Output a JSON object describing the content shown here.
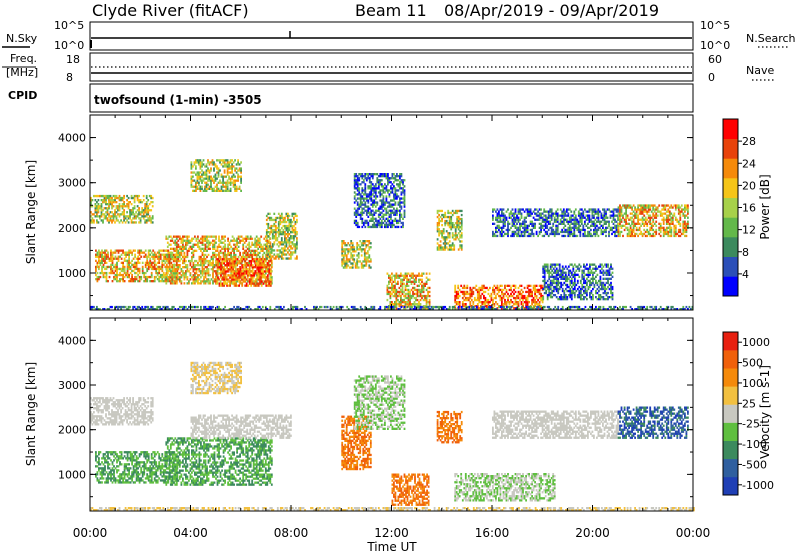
{
  "header": {
    "station": "Clyde River (fitACF)",
    "beam": "Beam 11",
    "date_range": "08/Apr/2019 - 09/Apr/2019"
  },
  "strip_panels": {
    "nsky": {
      "label": "N.Sky",
      "tick_top": "10^5",
      "tick_bottom": "10^0",
      "right_label": "N.Search",
      "right_tick_top": "10^5",
      "right_tick_bottom": "10^0"
    },
    "freq": {
      "label_line1": "Freq.",
      "label_line2": "[MHz]",
      "tick_top": "18",
      "tick_bottom": "8",
      "right_label": "Nave",
      "right_tick_top": "60",
      "right_tick_bottom": "0"
    },
    "cpid": {
      "label": "CPID",
      "program": "twofsound (1-min) -3505"
    }
  },
  "x_axis": {
    "label": "Time UT",
    "ticks": [
      "00:00",
      "04:00",
      "08:00",
      "12:00",
      "16:00",
      "20:00",
      "00:00"
    ]
  },
  "chart_data": [
    {
      "type": "heatmap",
      "name": "power-panel",
      "xlabel": "Time UT",
      "ylabel": "Slant Range [km]",
      "xlim": [
        0,
        24
      ],
      "ylim": [
        180,
        4500
      ],
      "y_ticks": [
        "1000",
        "2000",
        "3000",
        "4000"
      ],
      "colorbar": {
        "label": "Power [dB]",
        "ticks": [
          "4",
          "8",
          "12",
          "16",
          "20",
          "24",
          "28"
        ],
        "range": [
          0,
          30
        ],
        "colors": [
          "#0000ff",
          "#2b4fb8",
          "#3c8a5e",
          "#63b84a",
          "#a7d14a",
          "#f5c518",
          "#f58a0a",
          "#e8420a",
          "#ff0000"
        ]
      },
      "regions": [
        {
          "t0": 0.2,
          "t1": 3.5,
          "r0": 800,
          "r1": 1500,
          "level": "high"
        },
        {
          "t0": 3.0,
          "t1": 7.2,
          "r0": 750,
          "r1": 1800,
          "level": "high"
        },
        {
          "t0": 5.0,
          "t1": 7.2,
          "r0": 700,
          "r1": 1300,
          "level": "peak"
        },
        {
          "t0": 0.0,
          "t1": 2.5,
          "r0": 2100,
          "r1": 2700,
          "level": "mid"
        },
        {
          "t0": 4.0,
          "t1": 6.0,
          "r0": 2800,
          "r1": 3500,
          "level": "mid"
        },
        {
          "t0": 7.0,
          "t1": 8.2,
          "r0": 1300,
          "r1": 2300,
          "level": "mid"
        },
        {
          "t0": 10.0,
          "t1": 11.2,
          "r0": 1100,
          "r1": 1700,
          "level": "mid"
        },
        {
          "t0": 10.5,
          "t1": 12.5,
          "r0": 2000,
          "r1": 3200,
          "level": "low"
        },
        {
          "t0": 11.8,
          "t1": 13.5,
          "r0": 200,
          "r1": 1000,
          "level": "high"
        },
        {
          "t0": 13.8,
          "t1": 14.8,
          "r0": 1500,
          "r1": 2400,
          "level": "mid"
        },
        {
          "t0": 14.5,
          "t1": 18.0,
          "r0": 200,
          "r1": 700,
          "level": "peak"
        },
        {
          "t0": 18.0,
          "t1": 20.8,
          "r0": 400,
          "r1": 1200,
          "level": "low"
        },
        {
          "t0": 16.0,
          "t1": 21.0,
          "r0": 1800,
          "r1": 2400,
          "level": "low"
        },
        {
          "t0": 21.0,
          "t1": 23.8,
          "r0": 1800,
          "r1": 2500,
          "level": "high"
        },
        {
          "t0": 0.0,
          "t1": 24.0,
          "r0": 180,
          "r1": 260,
          "level": "low"
        }
      ]
    },
    {
      "type": "heatmap",
      "name": "velocity-panel",
      "xlabel": "Time UT",
      "ylabel": "Slant Range [km]",
      "xlim": [
        0,
        24
      ],
      "ylim": [
        180,
        4500
      ],
      "y_ticks": [
        "1000",
        "2000",
        "3000",
        "4000"
      ],
      "colorbar": {
        "label": "Velocity [m s-1]",
        "ticks": [
          "1000",
          "500",
          "100",
          "25",
          "-25",
          "-100",
          "-500",
          "-1000"
        ],
        "range": [
          -1000,
          1000
        ],
        "colors": [
          "#1f3fb5",
          "#2f5f9f",
          "#3c8a5e",
          "#5fbf3f",
          "#c8c8c0",
          "#f2c040",
          "#f58a0a",
          "#f0600a",
          "#e82010"
        ]
      },
      "regions": [
        {
          "t0": 0.2,
          "t1": 3.5,
          "r0": 800,
          "r1": 1500,
          "level": "pos-mid"
        },
        {
          "t0": 3.0,
          "t1": 7.2,
          "r0": 750,
          "r1": 1800,
          "level": "pos-mid"
        },
        {
          "t0": 0.0,
          "t1": 2.5,
          "r0": 2100,
          "r1": 2700,
          "level": "zero"
        },
        {
          "t0": 4.0,
          "t1": 6.0,
          "r0": 2800,
          "r1": 3500,
          "level": "neg-low"
        },
        {
          "t0": 4.0,
          "t1": 8.0,
          "r0": 1800,
          "r1": 2300,
          "level": "zero"
        },
        {
          "t0": 10.0,
          "t1": 11.2,
          "r0": 1100,
          "r1": 2300,
          "level": "neg-mid"
        },
        {
          "t0": 10.5,
          "t1": 12.5,
          "r0": 2000,
          "r1": 3200,
          "level": "pos-low"
        },
        {
          "t0": 12.0,
          "t1": 13.5,
          "r0": 300,
          "r1": 1000,
          "level": "neg-mid"
        },
        {
          "t0": 13.8,
          "t1": 14.8,
          "r0": 1700,
          "r1": 2400,
          "level": "neg-mid"
        },
        {
          "t0": 14.5,
          "t1": 18.5,
          "r0": 400,
          "r1": 1000,
          "level": "pos-low"
        },
        {
          "t0": 16.0,
          "t1": 21.0,
          "r0": 1800,
          "r1": 2400,
          "level": "zero"
        },
        {
          "t0": 21.0,
          "t1": 23.8,
          "r0": 1800,
          "r1": 2500,
          "level": "pos-high"
        },
        {
          "t0": 0.0,
          "t1": 24.0,
          "r0": 180,
          "r1": 260,
          "level": "neg-low"
        }
      ]
    }
  ]
}
